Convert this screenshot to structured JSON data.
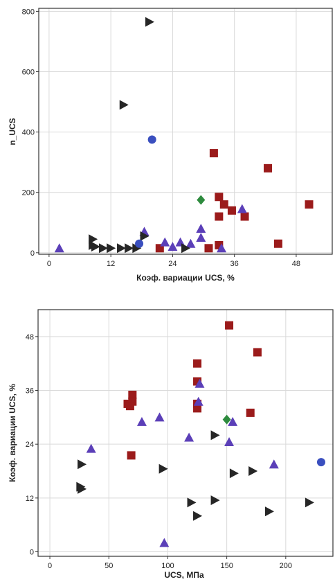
{
  "colors": {
    "square": "#9b1b1b",
    "triangle_up": "#5b3fb8",
    "triangle_right": "#262626",
    "circle": "#3a4fbf",
    "diamond": "#2e8b3e"
  },
  "chart_data": [
    {
      "type": "scatter",
      "xlabel": "Коэф. вариации UCS, %",
      "ylabel": "n_UCS",
      "xlim": [
        -2,
        55
      ],
      "ylim": [
        -5,
        810
      ],
      "xticks": [
        "0",
        "12",
        "24",
        "36",
        "48"
      ],
      "yticks": [
        "0",
        "200",
        "400",
        "600",
        "800"
      ],
      "grid": true,
      "series": [
        {
          "marker": "square",
          "color": "#9b1b1b",
          "points": [
            [
              32.0,
              330
            ],
            [
              42.5,
              280
            ],
            [
              33.0,
              185
            ],
            [
              34.0,
              160
            ],
            [
              35.5,
              140
            ],
            [
              33.0,
              120
            ],
            [
              38.0,
              120
            ],
            [
              50.5,
              160
            ],
            [
              33.0,
              25
            ],
            [
              31.0,
              15
            ],
            [
              21.5,
              15
            ],
            [
              44.5,
              30
            ]
          ]
        },
        {
          "marker": "triangle_up",
          "color": "#5b3fb8",
          "points": [
            [
              2.0,
              15
            ],
            [
              18.5,
              70
            ],
            [
              22.5,
              35
            ],
            [
              24.0,
              20
            ],
            [
              25.5,
              35
            ],
            [
              27.5,
              30
            ],
            [
              29.5,
              80
            ],
            [
              29.5,
              50
            ],
            [
              33.5,
              15
            ],
            [
              37.5,
              145
            ]
          ]
        },
        {
          "marker": "triangle_right",
          "color": "#262626",
          "points": [
            [
              19.5,
              765
            ],
            [
              14.5,
              490
            ],
            [
              8.5,
              45
            ],
            [
              8.5,
              25
            ],
            [
              9.0,
              20
            ],
            [
              10.5,
              15
            ],
            [
              12.0,
              15
            ],
            [
              14.0,
              15
            ],
            [
              15.5,
              15
            ],
            [
              17.0,
              15
            ],
            [
              18.5,
              55
            ],
            [
              26.5,
              15
            ]
          ]
        },
        {
          "marker": "circle",
          "color": "#3a4fbf",
          "points": [
            [
              20.0,
              375
            ],
            [
              17.5,
              30
            ]
          ]
        },
        {
          "marker": "diamond",
          "color": "#2e8b3e",
          "points": [
            [
              29.5,
              175
            ]
          ]
        }
      ]
    },
    {
      "type": "scatter",
      "xlabel": "UCS, МПа",
      "ylabel": "Коэф. вариации UCS, %",
      "xlim": [
        -10,
        240
      ],
      "ylim": [
        -1,
        54
      ],
      "xticks": [
        "0",
        "50",
        "100",
        "150",
        "200"
      ],
      "yticks": [
        "0",
        "12",
        "24",
        "36",
        "48"
      ],
      "grid": true,
      "series": [
        {
          "marker": "square",
          "color": "#9b1b1b",
          "points": [
            [
              152,
              50.5
            ],
            [
              176,
              44.5
            ],
            [
              125,
              42.0
            ],
            [
              125,
              38.0
            ],
            [
              125,
              33.0
            ],
            [
              125,
              32.0
            ],
            [
              70,
              35.0
            ],
            [
              70,
              33.5
            ],
            [
              66,
              33.0
            ],
            [
              68,
              32.5
            ],
            [
              170,
              31.0
            ],
            [
              69,
              21.5
            ]
          ]
        },
        {
          "marker": "triangle_up",
          "color": "#5b3fb8",
          "points": [
            [
              127,
              37.5
            ],
            [
              126,
              33.5
            ],
            [
              78,
              29.0
            ],
            [
              93,
              30.0
            ],
            [
              118,
              25.5
            ],
            [
              155,
              29.0
            ],
            [
              152,
              24.5
            ],
            [
              35,
              23.0
            ],
            [
              190,
              19.5
            ],
            [
              97,
              2.0
            ]
          ]
        },
        {
          "marker": "triangle_right",
          "color": "#262626",
          "points": [
            [
              27,
              19.5
            ],
            [
              26,
              14.5
            ],
            [
              27,
              14.0
            ],
            [
              96,
              18.5
            ],
            [
              140,
              26.0
            ],
            [
              156,
              17.5
            ],
            [
              172,
              18.0
            ],
            [
              120,
              11.0
            ],
            [
              140,
              11.5
            ],
            [
              125,
              8.0
            ],
            [
              186,
              9.0
            ],
            [
              220,
              11.0
            ]
          ]
        },
        {
          "marker": "circle",
          "color": "#3a4fbf",
          "points": [
            [
              230,
              20.0
            ]
          ]
        },
        {
          "marker": "diamond",
          "color": "#2e8b3e",
          "points": [
            [
              150,
              29.5
            ]
          ]
        }
      ]
    }
  ]
}
